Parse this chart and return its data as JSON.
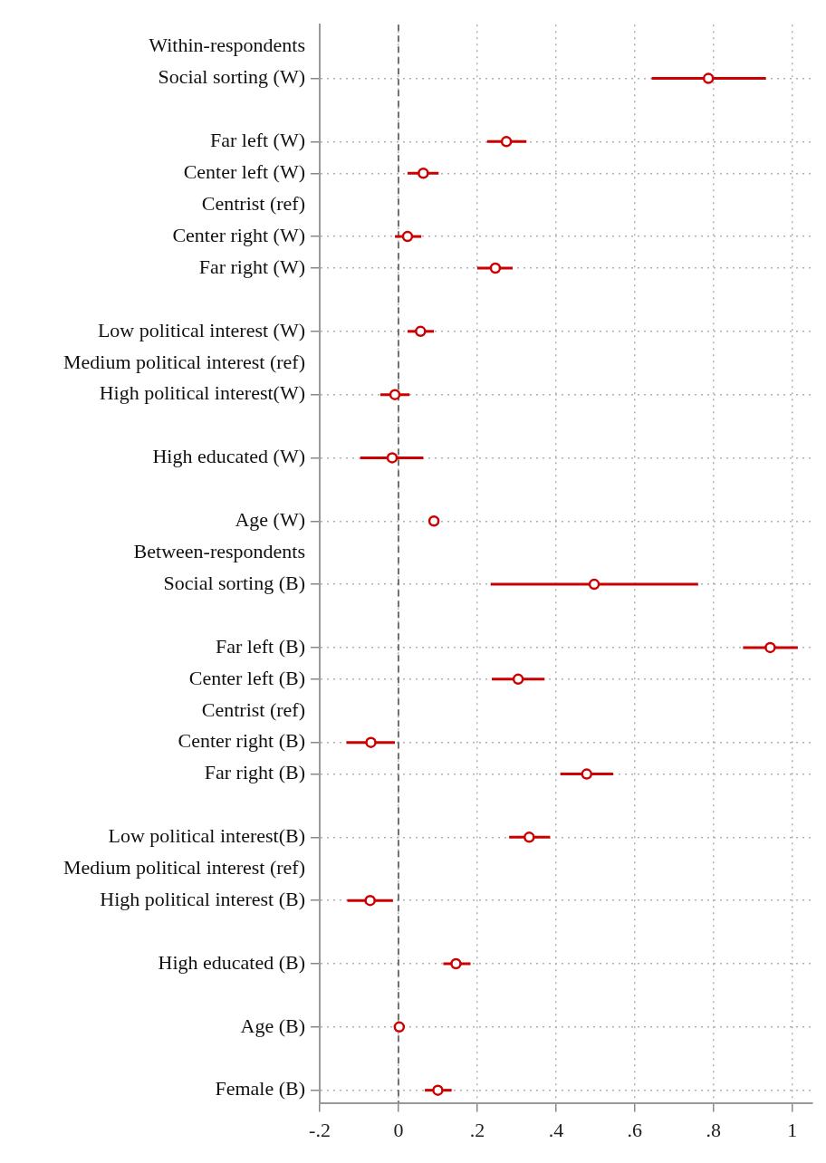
{
  "chart_data": {
    "type": "scatter",
    "orientation": "horizontal",
    "color": "#cc0000",
    "marker": "circle",
    "legend": false,
    "grid": true,
    "categories": [
      "Within-respondents",
      "Social sorting (W)",
      null,
      "Far left (W)",
      "Center left (W)",
      "Centrist (ref)",
      "Center right (W)",
      "Far right (W)",
      null,
      "Low political interest (W)",
      "Medium political interest (ref)",
      "High political interest(W)",
      null,
      "High educated (W)",
      null,
      "Age (W)",
      "Between-respondents",
      "Social sorting (B)",
      null,
      "Far left (B)",
      "Center left (B)",
      "Centrist (ref)",
      "Center right (B)",
      "Far right (B)",
      null,
      "Low political interest(B)",
      "Medium political interest (ref)",
      "High political interest (B)",
      null,
      "High educated (B)",
      null,
      "Age (B)",
      null,
      "Female (B)"
    ],
    "values": [
      null,
      0.787,
      null,
      0.274,
      0.063,
      null,
      0.023,
      0.246,
      null,
      0.056,
      null,
      -0.009,
      null,
      -0.016,
      null,
      0.09,
      null,
      0.497,
      null,
      0.944,
      0.304,
      null,
      -0.07,
      0.478,
      null,
      0.332,
      null,
      -0.072,
      null,
      0.146,
      null,
      0.002,
      null,
      0.1
    ],
    "errors": [
      null,
      [
        0.643,
        0.933
      ],
      null,
      [
        0.225,
        0.325
      ],
      [
        0.023,
        0.102
      ],
      null,
      [
        -0.009,
        0.058
      ],
      [
        0.2,
        0.29
      ],
      null,
      [
        0.023,
        0.09
      ],
      null,
      [
        -0.046,
        0.028
      ],
      null,
      [
        -0.097,
        0.063
      ],
      null,
      [
        0.088,
        0.093
      ],
      null,
      [
        0.234,
        0.761
      ],
      null,
      [
        0.875,
        1.014
      ],
      [
        0.237,
        0.371
      ],
      null,
      [
        -0.132,
        -0.009
      ],
      [
        0.411,
        0.545
      ],
      null,
      [
        0.281,
        0.385
      ],
      null,
      [
        -0.13,
        -0.014
      ],
      null,
      [
        0.114,
        0.183
      ],
      null,
      [
        0,
        0.004
      ],
      null,
      [
        0.067,
        0.135
      ]
    ],
    "xlim": [
      -0.2,
      1.05
    ],
    "xticks": [
      {
        "value": -0.2,
        "label": "-.2"
      },
      0,
      {
        "value": 0.2,
        "label": ".2"
      },
      {
        "value": 0.4,
        "label": ".4"
      },
      {
        "value": 0.6,
        "label": ".6"
      },
      {
        "value": 0.8,
        "label": ".8"
      },
      1
    ],
    "ref_lines": [
      {
        "axis": "x",
        "value": 0,
        "color": "#707070",
        "line_style": "dashed"
      }
    ]
  }
}
